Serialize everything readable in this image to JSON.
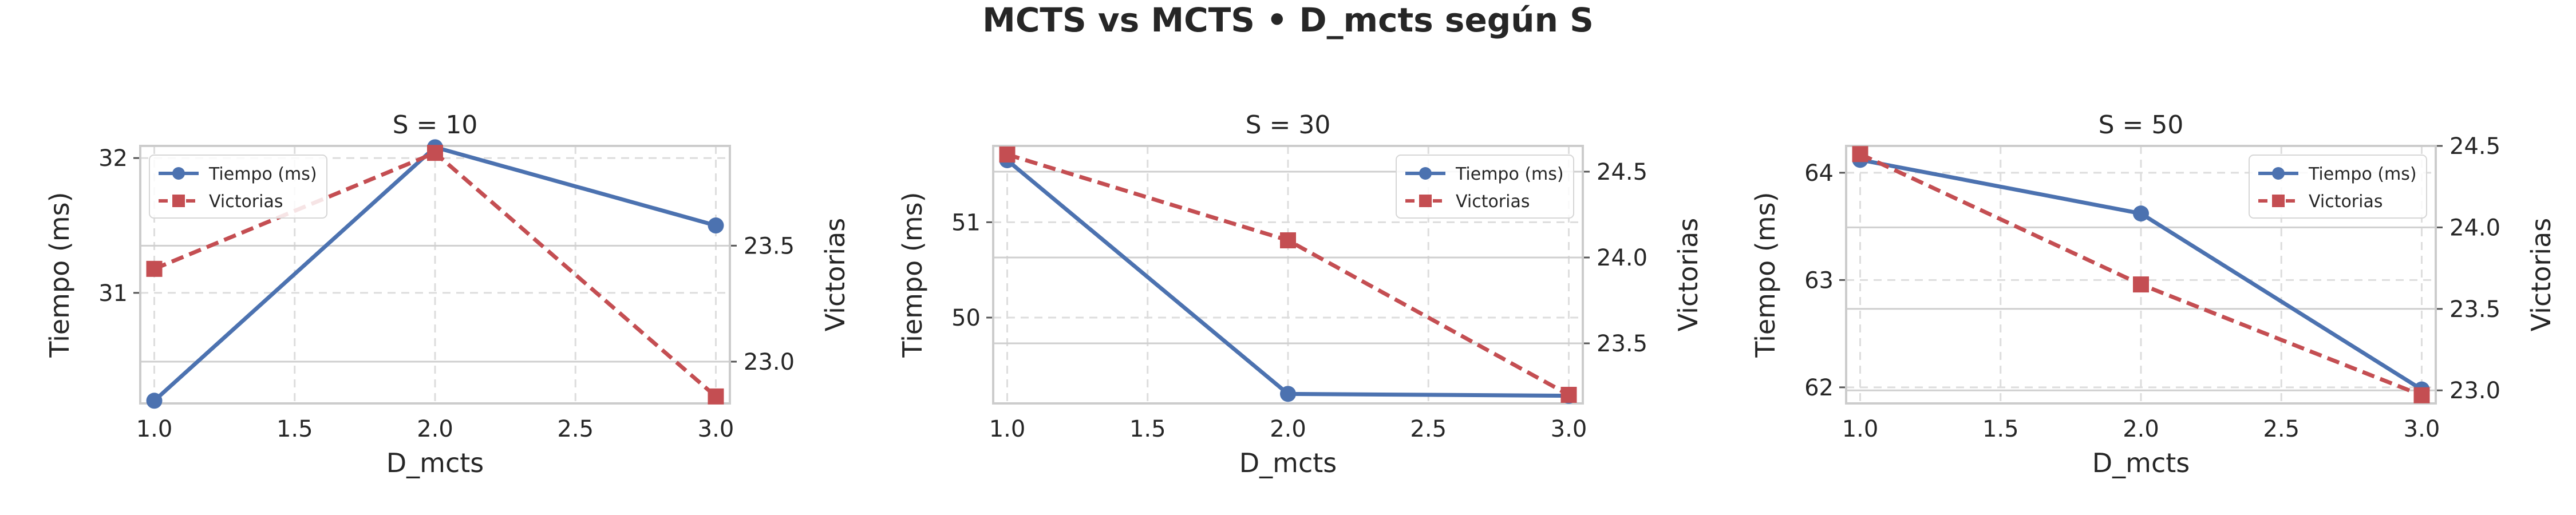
{
  "figure": {
    "title": "MCTS vs MCTS • D_mcts según S"
  },
  "colors": {
    "tiempo": "#4c72b0",
    "victorias": "#c44e52",
    "grid": "#dddddd",
    "spine": "#cccccc"
  },
  "chart_data": [
    {
      "type": "line",
      "title": "S = 10",
      "xlabel": "D_mcts",
      "ylabel": "Tiempo (ms)",
      "y2label": "Victorias",
      "x": [
        1.0,
        2.0,
        3.0
      ],
      "xlim": [
        0.95,
        3.05
      ],
      "xticks": [
        "1.0",
        "1.5",
        "2.0",
        "2.5",
        "3.0"
      ],
      "ylim": [
        30.18,
        32.09
      ],
      "yticks": [
        "31",
        "32"
      ],
      "y2lim": [
        22.82,
        23.93
      ],
      "y2ticks": [
        "23.0",
        "23.5"
      ],
      "legend": "top-left",
      "grid": true,
      "series": [
        {
          "name": "Tiempo (ms)",
          "axis": "left",
          "style": "solid-circle",
          "values": [
            30.2,
            32.08,
            31.5
          ]
        },
        {
          "name": "Victorias",
          "axis": "right",
          "style": "dashed-square",
          "values": [
            23.4,
            23.9,
            22.85
          ]
        }
      ]
    },
    {
      "type": "line",
      "title": "S = 30",
      "xlabel": "D_mcts",
      "ylabel": "Tiempo (ms)",
      "y2label": "Victorias",
      "x": [
        1.0,
        2.0,
        3.0
      ],
      "xlim": [
        0.95,
        3.05
      ],
      "xticks": [
        "1.0",
        "1.5",
        "2.0",
        "2.5",
        "3.0"
      ],
      "ylim": [
        49.1,
        51.8
      ],
      "yticks": [
        "50",
        "51"
      ],
      "y2lim": [
        23.15,
        24.65
      ],
      "y2ticks": [
        "23.5",
        "24.0",
        "24.5"
      ],
      "legend": "top-right",
      "grid": true,
      "series": [
        {
          "name": "Tiempo (ms)",
          "axis": "left",
          "style": "solid-circle",
          "values": [
            51.65,
            49.2,
            49.18
          ]
        },
        {
          "name": "Victorias",
          "axis": "right",
          "style": "dashed-square",
          "values": [
            24.6,
            24.1,
            23.2
          ]
        }
      ]
    },
    {
      "type": "line",
      "title": "S = 50",
      "xlabel": "D_mcts",
      "ylabel": "Tiempo (ms)",
      "y2label": "Victorias",
      "x": [
        1.0,
        2.0,
        3.0
      ],
      "xlim": [
        0.95,
        3.05
      ],
      "xticks": [
        "1.0",
        "1.5",
        "2.0",
        "2.5",
        "3.0"
      ],
      "ylim": [
        61.85,
        64.25
      ],
      "yticks": [
        "62",
        "63",
        "64"
      ],
      "y2lim": [
        22.92,
        24.5
      ],
      "y2ticks": [
        "23.0",
        "23.5",
        "24.0",
        "24.5"
      ],
      "legend": "top-right",
      "grid": true,
      "series": [
        {
          "name": "Tiempo (ms)",
          "axis": "left",
          "style": "solid-circle",
          "values": [
            64.12,
            63.62,
            61.98
          ]
        },
        {
          "name": "Victorias",
          "axis": "right",
          "style": "dashed-square",
          "values": [
            24.45,
            23.65,
            22.97
          ]
        }
      ]
    }
  ]
}
